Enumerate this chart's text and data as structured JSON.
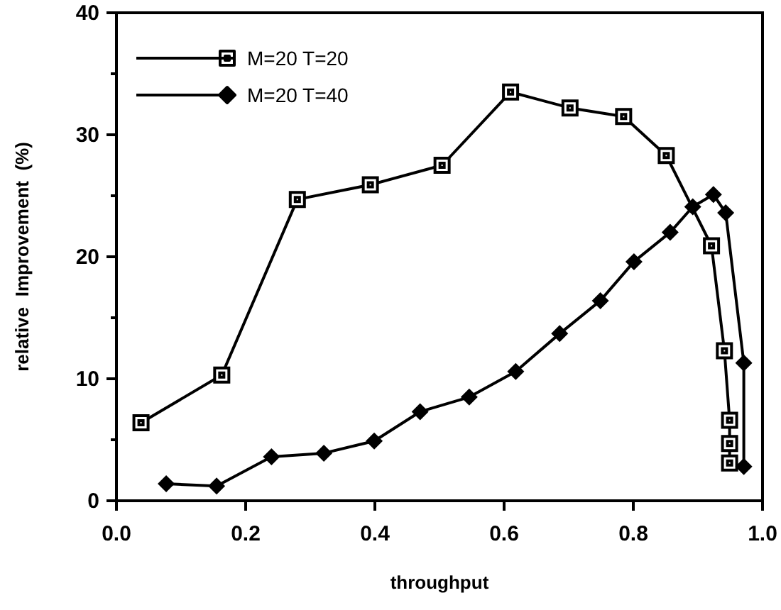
{
  "chart_data": {
    "type": "line",
    "xlabel": "throughput",
    "ylabel": "relative  Improvement  (%)",
    "xlim": [
      0,
      1
    ],
    "ylim": [
      0,
      40
    ],
    "xticks": [
      {
        "value": 0,
        "label": "0.0"
      },
      {
        "value": 0.2,
        "label": "0.2"
      },
      {
        "value": 0.4,
        "label": "0.4"
      },
      {
        "value": 0.6,
        "label": "0.6"
      },
      {
        "value": 0.8,
        "label": "0.8"
      },
      {
        "value": 1,
        "label": "1.0"
      }
    ],
    "yticks": [
      0,
      {
        "value": 5,
        "label": null
      },
      10,
      {
        "value": 15,
        "label": null
      },
      20,
      {
        "value": 25,
        "label": null
      },
      30,
      {
        "value": 35,
        "label": null
      },
      40
    ],
    "grid": false,
    "legend": "top left",
    "line_style": "solid",
    "series": [
      {
        "name": "M=20 T=20",
        "color": "#000000",
        "marker": "square",
        "x": [
          0.038,
          0.163,
          0.28,
          0.393,
          0.504,
          0.61,
          0.702,
          0.785,
          0.851,
          0.921,
          0.941,
          0.949,
          0.949,
          0.949
        ],
        "values": [
          6.4,
          10.3,
          24.7,
          25.9,
          27.5,
          33.5,
          32.2,
          31.5,
          28.3,
          20.9,
          12.3,
          6.6,
          4.7,
          3.1
        ]
      },
      {
        "name": "M=20 T=40",
        "color": "#000000",
        "marker": "diamond",
        "x": [
          0.077,
          0.155,
          0.24,
          0.321,
          0.399,
          0.47,
          0.546,
          0.618,
          0.686,
          0.749,
          0.801,
          0.857,
          0.892,
          0.924,
          0.943,
          0.971,
          0.971
        ],
        "values": [
          1.4,
          1.2,
          3.6,
          3.9,
          4.9,
          7.3,
          8.5,
          10.6,
          13.7,
          16.4,
          19.6,
          22,
          24.1,
          25.1,
          23.6,
          11.3,
          2.8
        ]
      }
    ]
  }
}
